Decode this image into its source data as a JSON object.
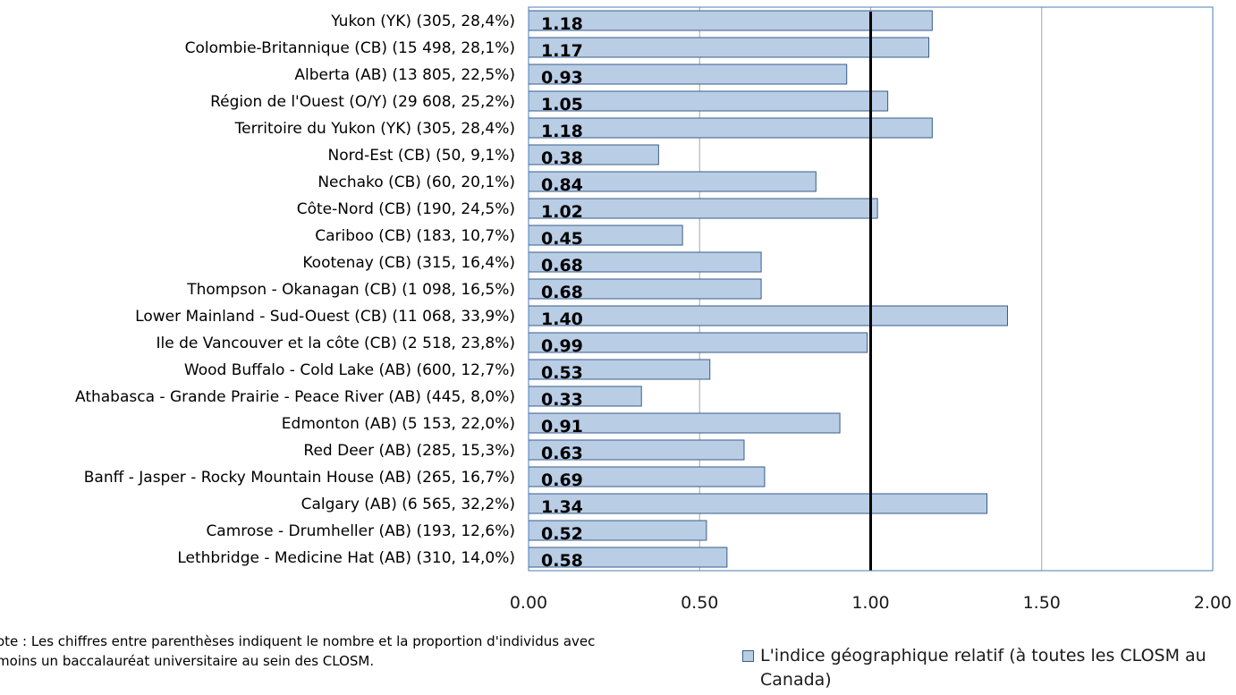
{
  "chart_data": {
    "type": "bar",
    "orientation": "horizontal",
    "categories": [
      "Yukon (YK) (305, 28,4%)",
      "Colombie-Britannique (CB) (15 498, 28,1%)",
      "Alberta (AB) (13 805, 22,5%)",
      "Région de l'Ouest (O/Y) (29 608, 25,2%)",
      "Territoire du Yukon (YK) (305, 28,4%)",
      "Nord-Est (CB) (50, 9,1%)",
      "Nechako (CB) (60, 20,1%)",
      "Côte-Nord (CB) (190, 24,5%)",
      "Cariboo (CB) (183, 10,7%)",
      "Kootenay (CB) (315, 16,4%)",
      "Thompson - Okanagan (CB) (1 098, 16,5%)",
      "Lower Mainland - Sud-Ouest (CB) (11 068, 33,9%)",
      "Ile de Vancouver et la côte (CB) (2 518, 23,8%)",
      "Wood Buffalo - Cold Lake (AB) (600, 12,7%)",
      "Athabasca - Grande Prairie - Peace River (AB) (445, 8,0%)",
      "Edmonton (AB) (5 153, 22,0%)",
      "Red Deer (AB) (285, 15,3%)",
      "Banff - Jasper - Rocky Mountain House (AB) (265, 16,7%)",
      "Calgary (AB) (6 565, 32,2%)",
      "Camrose - Drumheller (AB) (193, 12,6%)",
      "Lethbridge - Medicine Hat (AB) (310, 14,0%)"
    ],
    "values": [
      1.18,
      1.17,
      0.93,
      1.05,
      1.18,
      0.38,
      0.84,
      1.02,
      0.45,
      0.68,
      0.68,
      1.4,
      0.99,
      0.53,
      0.33,
      0.91,
      0.63,
      0.69,
      1.34,
      0.52,
      0.58
    ],
    "value_labels": [
      "1.18",
      "1.17",
      "0.93",
      "1.05",
      "1.18",
      "0.38",
      "0.84",
      "1.02",
      "0.45",
      "0.68",
      "0.68",
      "1.40",
      "0.99",
      "0.53",
      "0.33",
      "0.91",
      "0.63",
      "0.69",
      "1.34",
      "0.52",
      "0.58"
    ],
    "series": [
      {
        "name": "L'indice géographique relatif (à toutes les CLOSM au Canada)"
      }
    ],
    "xlim": [
      0,
      2
    ],
    "xticks": [
      0,
      0.5,
      1,
      1.5,
      2
    ],
    "xtick_labels": [
      "0.00",
      "0.50",
      "1.00",
      "1.50",
      "2.00"
    ],
    "reference_line": 1.0,
    "grid": "vertical",
    "legend_position": "bottom-right",
    "title": "",
    "xlabel": "",
    "ylabel": "",
    "colors": {
      "bar_fill": "#b9cde5",
      "bar_stroke": "#385d8a",
      "plot_border": "#4a7ebb",
      "gridline": "#a6a6a6",
      "reference_line": "#000000"
    }
  },
  "note": {
    "line1": "ote : Les chiffres entre parenthèses indiquent le nombre et la proportion d'individus avec",
    "line2": " moins un baccalauréat universitaire au sein des CLOSM."
  },
  "legend": {
    "label": "L'indice géographique relatif (à toutes les CLOSM au Canada)"
  }
}
